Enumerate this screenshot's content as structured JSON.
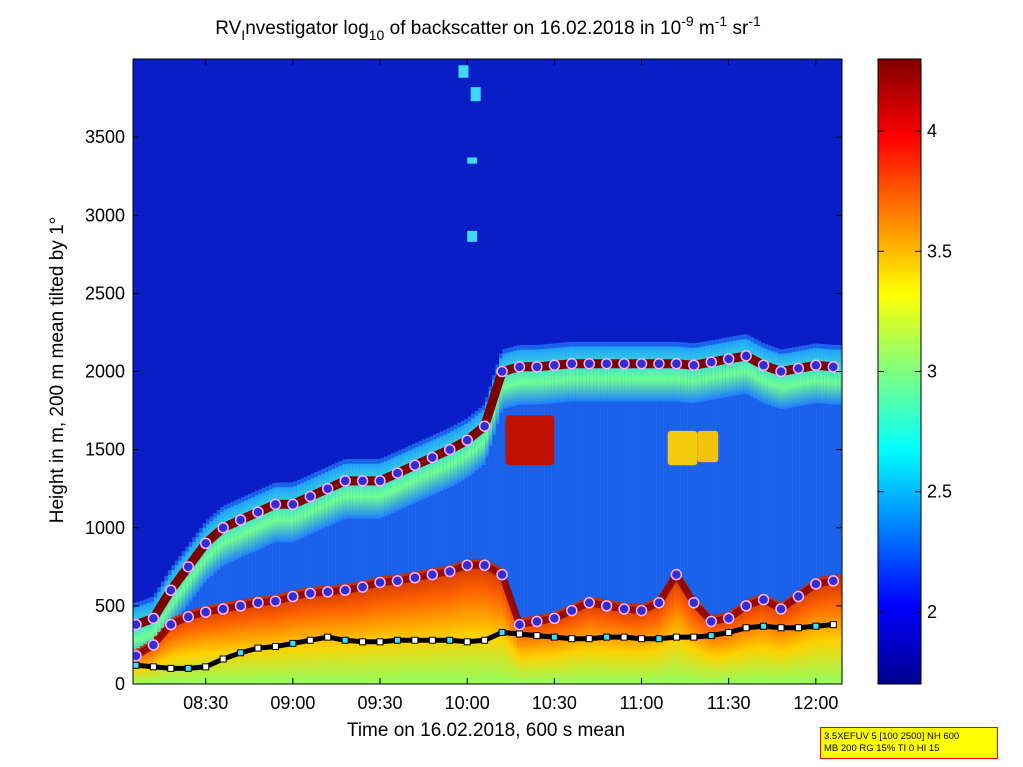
{
  "chart_data": {
    "type": "heatmap",
    "title": {
      "prefix": "RV",
      "sub_i": "I",
      "main": "nvestigator log",
      "sub_10": "10",
      "mid": " of backscatter on 16.02.2018 in 10",
      "sup_m9": "-9",
      "unit_m": " m",
      "sup_m1a": "-1",
      "unit_sr": " sr",
      "sup_m1b": "-1"
    },
    "xlabel": "Time on 16.02.2018, 600 s mean",
    "ylabel": "Height in m, 200 m mean tilted by 1°",
    "x_range_hours": [
      8.083,
      12.15
    ],
    "x_ticks": [
      {
        "value": 8.5,
        "label": "08:30"
      },
      {
        "value": 9.0,
        "label": "09:00"
      },
      {
        "value": 9.5,
        "label": "09:30"
      },
      {
        "value": 10.0,
        "label": "10:00"
      },
      {
        "value": 10.5,
        "label": "10:30"
      },
      {
        "value": 11.0,
        "label": "11:00"
      },
      {
        "value": 11.5,
        "label": "11:30"
      },
      {
        "value": 12.0,
        "label": "12:00"
      }
    ],
    "y_range": [
      0,
      4000
    ],
    "y_ticks": [
      0,
      500,
      1000,
      1500,
      2000,
      2500,
      3000,
      3500
    ],
    "colorbar": {
      "range": [
        1.7,
        4.3
      ],
      "ticks": [
        2,
        2.5,
        3,
        3.5,
        4
      ],
      "tick_labels": [
        "2",
        "2.5",
        "3",
        "3.5",
        "4"
      ],
      "colormap": "jet"
    },
    "layers": {
      "aerosol_top_height": [
        [
          8.1,
          380
        ],
        [
          8.2,
          420
        ],
        [
          8.3,
          600
        ],
        [
          8.4,
          750
        ],
        [
          8.5,
          900
        ],
        [
          8.6,
          1000
        ],
        [
          8.7,
          1050
        ],
        [
          8.8,
          1100
        ],
        [
          8.9,
          1150
        ],
        [
          9.0,
          1150
        ],
        [
          9.1,
          1200
        ],
        [
          9.2,
          1250
        ],
        [
          9.3,
          1300
        ],
        [
          9.4,
          1300
        ],
        [
          9.5,
          1300
        ],
        [
          9.6,
          1350
        ],
        [
          9.7,
          1400
        ],
        [
          9.8,
          1450
        ],
        [
          9.9,
          1500
        ],
        [
          10.0,
          1560
        ],
        [
          10.1,
          1650
        ],
        [
          10.2,
          2000
        ],
        [
          10.3,
          2030
        ],
        [
          10.4,
          2030
        ],
        [
          10.5,
          2040
        ],
        [
          10.6,
          2050
        ],
        [
          10.7,
          2050
        ],
        [
          10.8,
          2050
        ],
        [
          10.9,
          2050
        ],
        [
          11.0,
          2050
        ],
        [
          11.1,
          2050
        ],
        [
          11.2,
          2050
        ],
        [
          11.3,
          2040
        ],
        [
          11.4,
          2060
        ],
        [
          11.5,
          2080
        ],
        [
          11.6,
          2100
        ],
        [
          11.7,
          2040
        ],
        [
          11.8,
          2000
        ],
        [
          11.9,
          2020
        ],
        [
          12.0,
          2040
        ],
        [
          12.1,
          2030
        ]
      ],
      "mixing_layer_height": [
        [
          8.1,
          180
        ],
        [
          8.2,
          250
        ],
        [
          8.3,
          380
        ],
        [
          8.4,
          430
        ],
        [
          8.5,
          460
        ],
        [
          8.6,
          480
        ],
        [
          8.7,
          500
        ],
        [
          8.8,
          520
        ],
        [
          8.9,
          530
        ],
        [
          9.0,
          560
        ],
        [
          9.1,
          580
        ],
        [
          9.2,
          590
        ],
        [
          9.3,
          600
        ],
        [
          9.4,
          620
        ],
        [
          9.5,
          650
        ],
        [
          9.6,
          660
        ],
        [
          9.7,
          680
        ],
        [
          9.8,
          700
        ],
        [
          9.9,
          720
        ],
        [
          10.0,
          760
        ],
        [
          10.1,
          760
        ],
        [
          10.2,
          700
        ],
        [
          10.3,
          380
        ],
        [
          10.4,
          400
        ],
        [
          10.5,
          420
        ],
        [
          10.6,
          470
        ],
        [
          10.7,
          520
        ],
        [
          10.8,
          500
        ],
        [
          10.9,
          480
        ],
        [
          11.0,
          470
        ],
        [
          11.1,
          520
        ],
        [
          11.2,
          700
        ],
        [
          11.3,
          520
        ],
        [
          11.4,
          400
        ],
        [
          11.5,
          420
        ],
        [
          11.6,
          500
        ],
        [
          11.7,
          540
        ],
        [
          11.8,
          480
        ],
        [
          11.9,
          560
        ],
        [
          12.0,
          640
        ],
        [
          12.1,
          660
        ]
      ],
      "surface_layer_height": [
        [
          8.1,
          120
        ],
        [
          8.2,
          110
        ],
        [
          8.3,
          100
        ],
        [
          8.4,
          100
        ],
        [
          8.5,
          110
        ],
        [
          8.6,
          160
        ],
        [
          8.7,
          200
        ],
        [
          8.8,
          230
        ],
        [
          8.9,
          240
        ],
        [
          9.0,
          260
        ],
        [
          9.1,
          280
        ],
        [
          9.2,
          300
        ],
        [
          9.3,
          280
        ],
        [
          9.4,
          270
        ],
        [
          9.5,
          270
        ],
        [
          9.6,
          280
        ],
        [
          9.7,
          280
        ],
        [
          9.8,
          280
        ],
        [
          9.9,
          280
        ],
        [
          10.0,
          270
        ],
        [
          10.1,
          280
        ],
        [
          10.2,
          330
        ],
        [
          10.3,
          320
        ],
        [
          10.4,
          310
        ],
        [
          10.5,
          300
        ],
        [
          10.6,
          290
        ],
        [
          10.7,
          290
        ],
        [
          10.8,
          300
        ],
        [
          10.9,
          300
        ],
        [
          11.0,
          290
        ],
        [
          11.1,
          290
        ],
        [
          11.2,
          300
        ],
        [
          11.3,
          300
        ],
        [
          11.4,
          310
        ],
        [
          11.5,
          330
        ],
        [
          11.6,
          360
        ],
        [
          11.7,
          370
        ],
        [
          11.8,
          360
        ],
        [
          11.9,
          360
        ],
        [
          12.0,
          370
        ],
        [
          12.1,
          380
        ]
      ]
    }
  },
  "info_box": {
    "line1": "3.5XEFUV 5 [100 2500] NH 600",
    "line2": "MB 200 RG 15% TI 0 HI 15",
    "background": "#ffff00",
    "border": "#ff0000"
  }
}
